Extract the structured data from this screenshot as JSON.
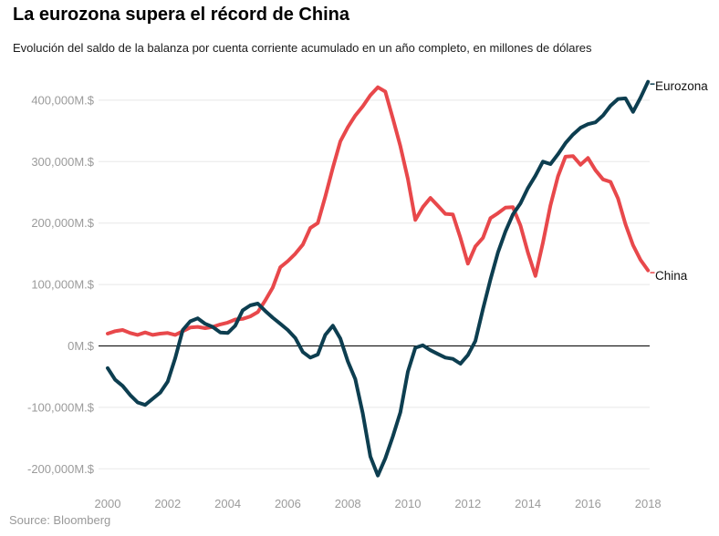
{
  "header": {
    "title": "La eurozona supera el récord de China",
    "subtitle": "Evolución del saldo de la balanza por cuenta corriente acumulado en un año completo, en millones de dólares"
  },
  "footer": {
    "source": "Source: Bloomberg"
  },
  "colors": {
    "eurozona_line": "#0d3e50",
    "china_line": "#e8484b",
    "gridline": "#e8e8e8",
    "zero_line": "#000000",
    "tick_text": "#9b9b9b",
    "title_text": "#000000",
    "source_text": "#999999"
  },
  "chart_data": {
    "type": "line",
    "title": "La eurozona supera el récord de China",
    "subtitle": "Evolución del saldo de la balanza por cuenta corriente acumulado en un año completo, en millones de dólares",
    "unit": "M.$",
    "grid": "horizontal",
    "zero_line": true,
    "legend_position": "end-of-line-right",
    "xlim": [
      2000,
      2018
    ],
    "ylim": [
      -200000,
      400000
    ],
    "x_ticks": [
      {
        "value": 2000,
        "label": "2000"
      },
      {
        "value": 2002,
        "label": "2002"
      },
      {
        "value": 2004,
        "label": "2004"
      },
      {
        "value": 2006,
        "label": "2006"
      },
      {
        "value": 2008,
        "label": "2008"
      },
      {
        "value": 2010,
        "label": "2010"
      },
      {
        "value": 2012,
        "label": "2012"
      },
      {
        "value": 2014,
        "label": "2014"
      },
      {
        "value": 2016,
        "label": "2016"
      },
      {
        "value": 2018,
        "label": "2018"
      }
    ],
    "y_ticks": [
      {
        "value": 400000,
        "label": "400,000M.$"
      },
      {
        "value": 300000,
        "label": "300,000M.$"
      },
      {
        "value": 200000,
        "label": "200,000M.$"
      },
      {
        "value": 100000,
        "label": "100,000M.$"
      },
      {
        "value": 0,
        "label": "0M.$"
      },
      {
        "value": -100000,
        "label": "-100,000M.$"
      },
      {
        "value": -200000,
        "label": "-200,000M.$"
      }
    ],
    "x": [
      2000,
      2000.25,
      2000.5,
      2000.75,
      2001,
      2001.25,
      2001.5,
      2001.75,
      2002,
      2002.25,
      2002.5,
      2002.75,
      2003,
      2003.25,
      2003.5,
      2003.75,
      2004,
      2004.25,
      2004.5,
      2004.75,
      2005,
      2005.25,
      2005.5,
      2005.75,
      2006,
      2006.25,
      2006.5,
      2006.75,
      2007,
      2007.25,
      2007.5,
      2007.75,
      2008,
      2008.25,
      2008.5,
      2008.75,
      2009,
      2009.25,
      2009.5,
      2009.75,
      2010,
      2010.25,
      2010.5,
      2010.75,
      2011,
      2011.25,
      2011.5,
      2011.75,
      2012,
      2012.25,
      2012.5,
      2012.75,
      2013,
      2013.25,
      2013.5,
      2013.75,
      2014,
      2014.25,
      2014.5,
      2014.75,
      2015,
      2015.25,
      2015.5,
      2015.75,
      2016,
      2016.25,
      2016.5,
      2016.75,
      2017,
      2017.25,
      2017.5,
      2017.75,
      2018
    ],
    "series": [
      {
        "name": "China",
        "color": "#e8484b",
        "values": [
          20000,
          24000,
          26000,
          21000,
          18000,
          22000,
          18000,
          20000,
          21000,
          18000,
          24000,
          30000,
          31000,
          29000,
          31000,
          35000,
          38000,
          43000,
          44000,
          48000,
          55000,
          74000,
          95000,
          128000,
          138000,
          150000,
          165000,
          192000,
          200000,
          243000,
          290000,
          333000,
          356000,
          375000,
          390000,
          408000,
          421000,
          414000,
          370000,
          325000,
          272000,
          205000,
          226000,
          241000,
          228000,
          215000,
          214000,
          176000,
          134000,
          162000,
          176000,
          208000,
          216000,
          225000,
          226000,
          196000,
          152000,
          114000,
          168000,
          229000,
          276000,
          308000,
          309000,
          295000,
          306000,
          286000,
          271000,
          267000,
          240000,
          198000,
          164000,
          140000,
          123000
        ]
      },
      {
        "name": "Eurozona",
        "color": "#0d3e50",
        "values": [
          -36000,
          -55000,
          -65000,
          -80000,
          -92000,
          -96000,
          -86000,
          -76000,
          -58000,
          -20000,
          26000,
          40000,
          45000,
          36000,
          31000,
          22000,
          21000,
          33000,
          58000,
          66000,
          69000,
          57000,
          46000,
          36000,
          26000,
          13000,
          -10000,
          -19000,
          -14000,
          18000,
          33000,
          12000,
          -25000,
          -54000,
          -110000,
          -180000,
          -211000,
          -183000,
          -147000,
          -108000,
          -42000,
          -3000,
          1000,
          -7000,
          -13000,
          -19000,
          -21000,
          -29000,
          -15000,
          8000,
          60000,
          108000,
          152000,
          186000,
          214000,
          232000,
          257000,
          277000,
          300000,
          296000,
          312000,
          330000,
          344000,
          355000,
          361000,
          364000,
          375000,
          391000,
          402000,
          403000,
          381000,
          404000,
          430000
        ]
      }
    ]
  }
}
